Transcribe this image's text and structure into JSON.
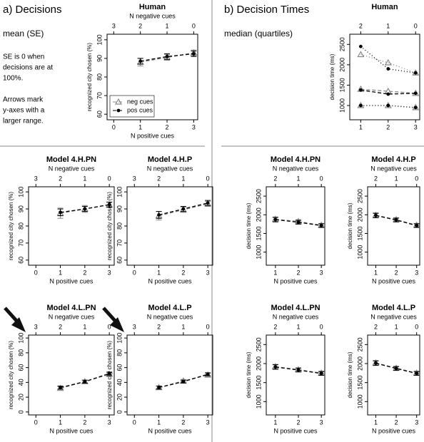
{
  "panels": [
    {
      "label": "a) Decisions",
      "stat": "mean (SE)",
      "notes": [
        "SE is 0 when",
        "decisions are at",
        "100%.",
        "",
        "Arrows mark",
        "y-axes with a",
        "larger range."
      ]
    },
    {
      "label": "b) Decision Times",
      "stat": "median (quartiles)"
    }
  ],
  "chart_data": [
    {
      "type": "line",
      "title": "Human",
      "xlabel": "N positive cues",
      "x2label": "N negative cues",
      "ylabel": "recognized city chosen (%)",
      "x": [
        1,
        2,
        3
      ],
      "xlim": [
        -0.25,
        3.15
      ],
      "xticks": [
        0,
        1,
        2,
        3
      ],
      "x2ticks": [
        {
          "value": 0,
          "label": "3"
        },
        {
          "value": 1,
          "label": "2"
        },
        {
          "value": 2,
          "label": "1"
        },
        {
          "value": 3,
          "label": "0"
        }
      ],
      "ylim": [
        57,
        103
      ],
      "yticks": [
        60,
        70,
        80,
        90,
        100
      ],
      "legend": "bottom-left",
      "series": [
        {
          "name": "neg cues",
          "color": "#888888",
          "marker": "triangle",
          "values": [
            88,
            90.5,
            93
          ],
          "errors": [
            2,
            1.5,
            1.5
          ]
        },
        {
          "name": "pos cues",
          "color": "#000000",
          "marker": "dot",
          "values": [
            88.5,
            91,
            92.5
          ],
          "errors": [
            1.5,
            1.5,
            1.5
          ]
        }
      ]
    },
    {
      "type": "line",
      "title": "Human",
      "ylabel": "decision time (ms)",
      "x": [
        1,
        2,
        3
      ],
      "xlim": [
        0.6,
        3.15
      ],
      "xticks": [
        1,
        2,
        3
      ],
      "x2ticks": [
        {
          "value": 1,
          "label": "2"
        },
        {
          "value": 2,
          "label": "1"
        },
        {
          "value": 3,
          "label": "0"
        }
      ],
      "ylim": [
        650,
        2750
      ],
      "yticks": [
        1000,
        1500,
        2000,
        2500
      ],
      "series": [
        {
          "color": "#888888",
          "marker": "triangle",
          "values": [
            1400,
            1350,
            1300
          ],
          "lower": [
            1000,
            1000,
            950
          ],
          "upper": [
            2250,
            2050,
            1800
          ]
        },
        {
          "color": "#000000",
          "marker": "dot",
          "values": [
            1380,
            1280,
            1300
          ],
          "lower": [
            1000,
            1000,
            950
          ],
          "upper": [
            2450,
            1900,
            1800
          ]
        }
      ]
    },
    {
      "type": "line",
      "title": "Model 4.H.PN",
      "xlabel": "N positive cues",
      "x2label": "N negative cues",
      "ylabel": "recognized city chosen (%)",
      "x": [
        1,
        2,
        3
      ],
      "xlim": [
        -0.3,
        3.2
      ],
      "xticks": [
        0,
        1,
        2,
        3
      ],
      "x2ticks": [
        {
          "value": 0,
          "label": "3"
        },
        {
          "value": 1,
          "label": "2"
        },
        {
          "value": 2,
          "label": "1"
        },
        {
          "value": 3,
          "label": "0"
        }
      ],
      "ylim": [
        57,
        103
      ],
      "yticks": [
        60,
        70,
        80,
        90,
        100
      ],
      "series": [
        {
          "color": "#888888",
          "marker": "triangle",
          "values": [
            87.5,
            90,
            92.5
          ],
          "errors": [
            3,
            2,
            1.5
          ]
        },
        {
          "color": "#000000",
          "marker": "dot",
          "values": [
            88,
            90,
            92.5
          ],
          "errors": [
            2,
            1.5,
            1.5
          ]
        }
      ]
    },
    {
      "type": "line",
      "title": "Model 4.H.P",
      "xlabel": "N positive cues",
      "x2label": "N negative cues",
      "ylabel": "recognized city chosen (%)",
      "x": [
        1,
        2,
        3
      ],
      "xlim": [
        -0.3,
        3.2
      ],
      "xticks": [
        0,
        1,
        2,
        3
      ],
      "x2ticks": [
        {
          "value": 0,
          "label": "3"
        },
        {
          "value": 1,
          "label": "2"
        },
        {
          "value": 2,
          "label": "1"
        },
        {
          "value": 3,
          "label": "0"
        }
      ],
      "ylim": [
        57,
        103
      ],
      "yticks": [
        60,
        70,
        80,
        90,
        100
      ],
      "series": [
        {
          "color": "#888888",
          "marker": "triangle",
          "values": [
            86,
            89.5,
            93
          ],
          "errors": [
            2.5,
            1.5,
            1.5
          ]
        },
        {
          "color": "#000000",
          "marker": "dot",
          "values": [
            86.5,
            90,
            93.5
          ],
          "errors": [
            2,
            1.5,
            1.5
          ]
        }
      ]
    },
    {
      "type": "line",
      "title": "Model 4.L.PN",
      "xlabel": "N positive cues",
      "x2label": "N negative cues",
      "ylabel": "recognized city chosen (%)",
      "x": [
        1,
        2,
        3
      ],
      "xlim": [
        -0.3,
        3.2
      ],
      "xticks": [
        0,
        1,
        2,
        3
      ],
      "x2ticks": [
        {
          "value": 0,
          "label": "3"
        },
        {
          "value": 1,
          "label": "2"
        },
        {
          "value": 2,
          "label": "1"
        },
        {
          "value": 3,
          "label": "0"
        }
      ],
      "ylim": [
        -4,
        104
      ],
      "yticks": [
        0,
        20,
        40,
        60,
        80,
        100
      ],
      "arrow": true,
      "series": [
        {
          "color": "#888888",
          "marker": "triangle",
          "values": [
            32,
            41,
            51
          ],
          "errors": [
            2,
            2,
            2
          ]
        },
        {
          "color": "#000000",
          "marker": "dot",
          "values": [
            33,
            41,
            52
          ],
          "errors": [
            2,
            2,
            2
          ]
        }
      ]
    },
    {
      "type": "line",
      "title": "Model 4.L.P",
      "xlabel": "N positive cues",
      "x2label": "N negative cues",
      "ylabel": "recognized city chosen (%)",
      "x": [
        1,
        2,
        3
      ],
      "xlim": [
        -0.3,
        3.2
      ],
      "xticks": [
        0,
        1,
        2,
        3
      ],
      "x2ticks": [
        {
          "value": 0,
          "label": "3"
        },
        {
          "value": 1,
          "label": "2"
        },
        {
          "value": 2,
          "label": "1"
        },
        {
          "value": 3,
          "label": "0"
        }
      ],
      "ylim": [
        -4,
        104
      ],
      "yticks": [
        0,
        20,
        40,
        60,
        80,
        100
      ],
      "arrow": true,
      "series": [
        {
          "color": "#888888",
          "marker": "triangle",
          "values": [
            33,
            42,
            50
          ],
          "errors": [
            2,
            2,
            2
          ]
        },
        {
          "color": "#000000",
          "marker": "dot",
          "values": [
            33,
            41,
            51
          ],
          "errors": [
            2,
            2,
            2
          ]
        }
      ]
    },
    {
      "type": "line",
      "title": "Model 4.H.PN",
      "xlabel": "N positive cues",
      "x2label": "N negative cues",
      "ylabel": "decision time (ms)",
      "x": [
        1,
        2,
        3
      ],
      "xlim": [
        0.6,
        3.15
      ],
      "xticks": [
        1,
        2,
        3
      ],
      "x2ticks": [
        {
          "value": 1,
          "label": "2"
        },
        {
          "value": 2,
          "label": "1"
        },
        {
          "value": 3,
          "label": "0"
        }
      ],
      "ylim": [
        650,
        2750
      ],
      "yticks": [
        1000,
        1500,
        2000,
        2500
      ],
      "series": [
        {
          "color": "#888888",
          "marker": "triangle",
          "values": [
            1880,
            1820,
            1720
          ],
          "errors": [
            60,
            50,
            50
          ]
        },
        {
          "color": "#000000",
          "marker": "dot",
          "values": [
            1870,
            1800,
            1710
          ],
          "errors": [
            60,
            50,
            50
          ]
        }
      ]
    },
    {
      "type": "line",
      "title": "Model 4.H.P",
      "xlabel": "N positive cues",
      "x2label": "N negative cues",
      "ylabel": "decision time (ms)",
      "x": [
        1,
        2,
        3
      ],
      "xlim": [
        0.6,
        3.15
      ],
      "xticks": [
        1,
        2,
        3
      ],
      "x2ticks": [
        {
          "value": 1,
          "label": "2"
        },
        {
          "value": 2,
          "label": "1"
        },
        {
          "value": 3,
          "label": "0"
        }
      ],
      "ylim": [
        650,
        2750
      ],
      "yticks": [
        1000,
        1500,
        2000,
        2500
      ],
      "series": [
        {
          "color": "#888888",
          "marker": "triangle",
          "values": [
            1990,
            1870,
            1720
          ],
          "errors": [
            60,
            50,
            50
          ]
        },
        {
          "color": "#000000",
          "marker": "dot",
          "values": [
            1980,
            1860,
            1710
          ],
          "errors": [
            60,
            50,
            50
          ]
        }
      ]
    },
    {
      "type": "line",
      "title": "Model 4.L.PN",
      "xlabel": "N positive cues",
      "x2label": "N negative cues",
      "ylabel": "decision time (ms)",
      "x": [
        1,
        2,
        3
      ],
      "xlim": [
        0.6,
        3.15
      ],
      "xticks": [
        1,
        2,
        3
      ],
      "x2ticks": [
        {
          "value": 1,
          "label": "2"
        },
        {
          "value": 2,
          "label": "1"
        },
        {
          "value": 3,
          "label": "0"
        }
      ],
      "ylim": [
        650,
        2750
      ],
      "yticks": [
        1000,
        1500,
        2000,
        2500
      ],
      "series": [
        {
          "color": "#888888",
          "marker": "triangle",
          "values": [
            1920,
            1840,
            1750
          ],
          "errors": [
            60,
            50,
            50
          ]
        },
        {
          "color": "#000000",
          "marker": "dot",
          "values": [
            1910,
            1830,
            1740
          ],
          "errors": [
            60,
            50,
            50
          ]
        }
      ]
    },
    {
      "type": "line",
      "title": "Model 4.L.P",
      "xlabel": "N positive cues",
      "x2label": "N negative cues",
      "ylabel": "decision time (ms)",
      "x": [
        1,
        2,
        3
      ],
      "xlim": [
        0.6,
        3.15
      ],
      "xticks": [
        1,
        2,
        3
      ],
      "x2ticks": [
        {
          "value": 1,
          "label": "2"
        },
        {
          "value": 2,
          "label": "1"
        },
        {
          "value": 3,
          "label": "0"
        }
      ],
      "ylim": [
        650,
        2750
      ],
      "yticks": [
        1000,
        1500,
        2000,
        2500
      ],
      "series": [
        {
          "color": "#888888",
          "marker": "triangle",
          "values": [
            2020,
            1880,
            1750
          ],
          "errors": [
            60,
            50,
            50
          ]
        },
        {
          "color": "#000000",
          "marker": "dot",
          "values": [
            2010,
            1870,
            1740
          ],
          "errors": [
            60,
            50,
            50
          ]
        }
      ]
    }
  ]
}
